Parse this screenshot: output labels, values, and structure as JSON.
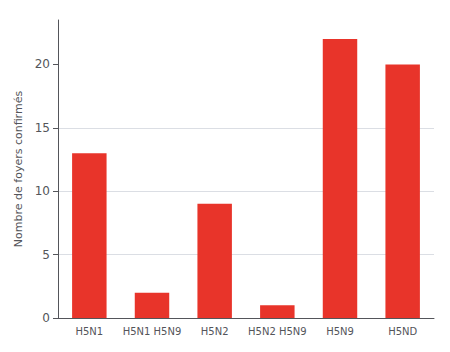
{
  "chart_data": {
    "type": "bar",
    "categories": [
      "H5N1",
      "H5N1 H5N9",
      "H5N2",
      "H5N2 H5N9",
      "H5N9",
      "H5ND"
    ],
    "values": [
      13,
      2,
      9,
      1,
      22,
      20
    ],
    "color": "#e8342a",
    "ylabel": "Nombre de foyers confirmés",
    "ylim": [
      0,
      23.5
    ],
    "yticks": [
      0,
      5,
      10,
      15,
      20
    ],
    "grid": true
  }
}
